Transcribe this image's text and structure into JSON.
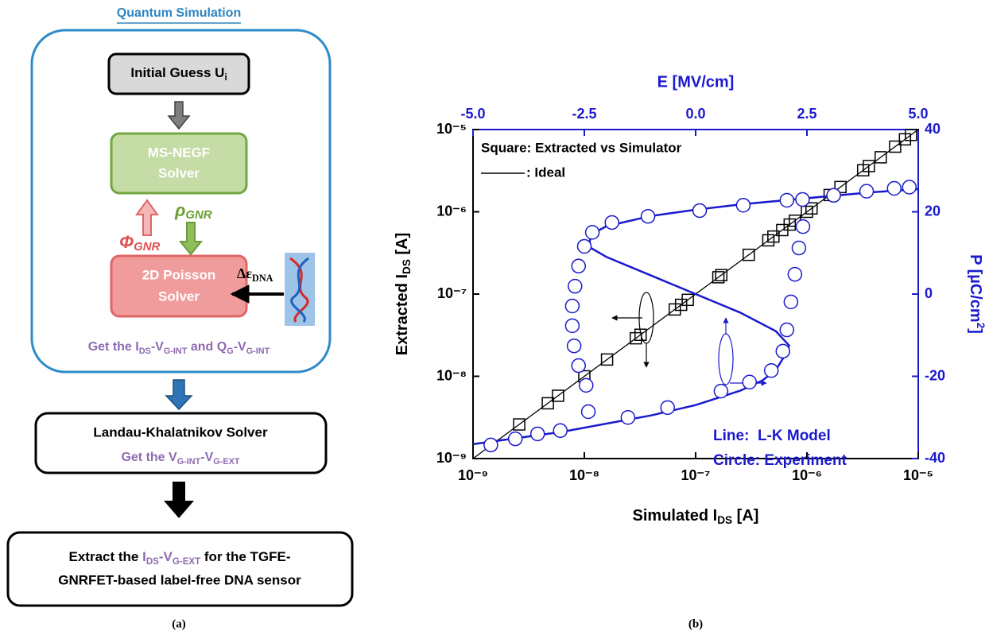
{
  "figure": {
    "caption_a": "(a)",
    "caption_b": "(b)"
  },
  "diagram": {
    "title": "Quantum Simulation",
    "initial_guess": [
      "Initial Guess U",
      {
        "sub": "i"
      }
    ],
    "negf": [
      "MS-NEGF",
      "Solver"
    ],
    "rho": [
      "ρ",
      {
        "sub": "GNR"
      }
    ],
    "phi": [
      "Φ",
      {
        "sub": "GNR"
      }
    ],
    "poisson": [
      "2D Poisson",
      "Solver"
    ],
    "delta_eps": [
      "Δε",
      {
        "sub": "DNA"
      }
    ],
    "quantum_output": [
      "Get the I",
      {
        "sub": "DS"
      },
      "-V",
      {
        "sub": "G-INT"
      },
      " and Q",
      {
        "sub": "G"
      },
      "-V",
      {
        "sub": "G-INT"
      }
    ],
    "lk_title": "Landau-Khalatnikov Solver",
    "lk_output": [
      "Get the V",
      {
        "sub": "G-INT"
      },
      "-V",
      {
        "sub": "G-EXT"
      }
    ],
    "extract_line1": [
      "Extract the ",
      {
        "text": "I",
        "color": "#8e6bb0"
      },
      {
        "sub": "DS",
        "color": "#8e6bb0"
      },
      {
        "text": "-V",
        "color": "#8e6bb0"
      },
      {
        "sub": "G-EXT",
        "color": "#8e6bb0"
      },
      " for the TGFE-"
    ],
    "extract_line2": "GNRFET-based label-free DNA sensor"
  },
  "chart_data": {
    "type": "scatter",
    "x_label": [
      "Simulated I",
      {
        "sub": "DS"
      },
      " [A]"
    ],
    "y_label": [
      "Extracted I",
      {
        "sub": "DS"
      },
      " [A]"
    ],
    "x2_label": "E [MV/cm]",
    "y2_label": [
      "P [µC/cm",
      {
        "sup": "2"
      },
      "]"
    ],
    "x_log": true,
    "y_log": true,
    "xlim": [
      1e-09,
      1e-05
    ],
    "ylim": [
      1e-09,
      1e-05
    ],
    "xticks": [
      {
        "value": 1e-09,
        "label": "10⁻⁹"
      },
      {
        "value": 1e-08,
        "label": "10⁻⁸"
      },
      {
        "value": 1e-07,
        "label": "10⁻⁷"
      },
      {
        "value": 1e-06,
        "label": "10⁻⁶"
      },
      {
        "value": 1e-05,
        "label": "10⁻⁵"
      }
    ],
    "yticks": [
      {
        "value": 1e-09,
        "label": "10⁻⁹"
      },
      {
        "value": 1e-08,
        "label": "10⁻⁸"
      },
      {
        "value": 1e-07,
        "label": "10⁻⁷"
      },
      {
        "value": 1e-06,
        "label": "10⁻⁶"
      },
      {
        "value": 1e-05,
        "label": "10⁻⁵"
      }
    ],
    "x2lim": [
      -5,
      5
    ],
    "x2ticks": [
      {
        "value": -5,
        "label": "-5.0"
      },
      {
        "value": -2.5,
        "label": "-2.5"
      },
      {
        "value": 0,
        "label": "0.0"
      },
      {
        "value": 2.5,
        "label": "2.5"
      },
      {
        "value": 5,
        "label": "5.0"
      }
    ],
    "y2lim": [
      -40,
      40
    ],
    "y2ticks": [
      -40,
      -20,
      0,
      20,
      40
    ],
    "axis2_color": "#1a1acd",
    "series": [
      {
        "name": "Square: Extracted vs Simulator",
        "style": "square",
        "color": "#000000",
        "x": [
          2.6e-09,
          4.7e-09,
          5.8e-09,
          1e-08,
          1.6e-08,
          2.9e-08,
          3.2e-08,
          6.5e-08,
          7.4e-08,
          8.5e-08,
          1.6e-07,
          1.7e-07,
          3e-07,
          4.5e-07,
          5e-07,
          6e-07,
          7e-07,
          7.8e-07,
          1e-06,
          1.1e-06,
          1.6e-06,
          2e-06,
          3.2e-06,
          3.6e-06,
          4.6e-06,
          6.2e-06,
          7.6e-06,
          8.6e-06
        ],
        "values": [
          2.6e-09,
          4.7e-09,
          5.8e-09,
          1e-08,
          1.6e-08,
          2.9e-08,
          3.2e-08,
          6.5e-08,
          7.4e-08,
          8.5e-08,
          1.6e-07,
          1.7e-07,
          3e-07,
          4.5e-07,
          5e-07,
          6e-07,
          7e-07,
          7.8e-07,
          1e-06,
          1.1e-06,
          1.6e-06,
          2e-06,
          3.2e-06,
          3.6e-06,
          4.6e-06,
          6.2e-06,
          7.6e-06,
          8.6e-06
        ]
      },
      {
        "name": ": Ideal",
        "style": "line",
        "color": "#000000",
        "x": [
          1e-09,
          1e-05
        ],
        "values": [
          1e-09,
          1e-05
        ]
      },
      {
        "name": "Line:  L-K Model",
        "style": "line",
        "axis": "y2",
        "xaxis": "x2",
        "color": "#1a1acd",
        "x": [
          -5,
          -4,
          -3,
          -2,
          -1,
          0,
          1,
          1.5,
          1.8,
          2.0,
          2.1,
          1.8,
          1.0,
          0,
          -1.0,
          -2.0,
          -2.4,
          -2.35,
          -2.0,
          -1,
          0,
          1,
          2,
          3,
          4,
          5
        ],
        "values": [
          -36.5,
          -35,
          -33.5,
          -31.5,
          -29.5,
          -27,
          -23.5,
          -21,
          -18.5,
          -15,
          -12.5,
          -9,
          -4.5,
          0,
          4.5,
          9,
          11.5,
          14.5,
          16.5,
          19,
          20.5,
          21.8,
          22.8,
          23.8,
          24.8,
          25.5
        ]
      },
      {
        "name": "Circle: Experiment",
        "style": "circle",
        "axis": "y2",
        "xaxis": "x2",
        "color": "#1a1acd",
        "x": [
          -4.6,
          -4.05,
          -3.55,
          -3.04,
          -2.41,
          -1.52,
          -0.63,
          0.57,
          1.21,
          1.7,
          1.96,
          2.05,
          2.14,
          2.23,
          2.32,
          2.41,
          2.4,
          3.1,
          3.84,
          4.46,
          4.8,
          2.05,
          1.07,
          0.09,
          -1.07,
          -1.88,
          -2.32,
          -2.5,
          -2.63,
          -2.71,
          -2.77,
          -2.77,
          -2.73,
          -2.63,
          -2.46
        ],
        "values": [
          -36.7,
          -35.2,
          -34,
          -33.2,
          -28.6,
          -30,
          -27.6,
          -23.6,
          -21.4,
          -18.6,
          -13.9,
          -8.7,
          -1.9,
          4.8,
          11.2,
          16.4,
          23,
          24,
          25,
          25.7,
          26,
          22.8,
          21.6,
          20.3,
          18.9,
          17.4,
          15,
          11.6,
          6.8,
          1.9,
          -2.9,
          -7.7,
          -12.6,
          -17.4,
          -22.2
        ]
      }
    ]
  }
}
